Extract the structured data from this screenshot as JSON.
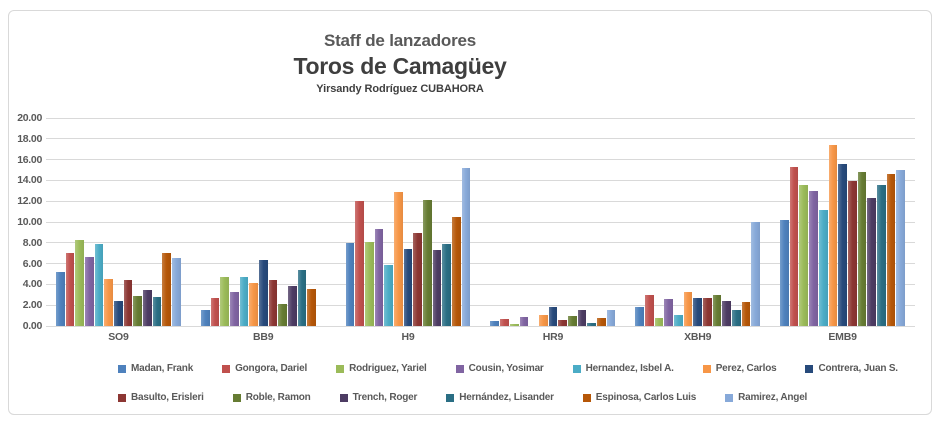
{
  "frame": {
    "background": "#FFFFFF",
    "border_color": "#D9D9D9"
  },
  "chart_data": {
    "type": "bar",
    "title": "Staff de lanzadores",
    "team_title": "Toros de Camagüey",
    "byline": "Yirsandy Rodríguez CUBAHORA",
    "categories": [
      "SO9",
      "BB9",
      "H9",
      "HR9",
      "XBH9",
      "EMB9"
    ],
    "xlabel": "",
    "ylabel": "",
    "ylim": [
      0,
      20
    ],
    "ytick_step": 2,
    "ytick_decimals": 2,
    "grid": true,
    "gridline_color": "#D9D9D9",
    "legend_position": "bottom",
    "legend_row_split": 7,
    "series": [
      {
        "name": "Madan, Frank",
        "color": "#4E81BD",
        "values": [
          5.2,
          1.5,
          8.0,
          0.5,
          1.8,
          10.2
        ]
      },
      {
        "name": "Gongora, Dariel",
        "color": "#C0504D",
        "values": [
          7.0,
          2.7,
          12.0,
          0.7,
          3.0,
          15.3
        ]
      },
      {
        "name": "Rodriguez, Yariel",
        "color": "#9BBB59",
        "values": [
          8.3,
          4.7,
          8.1,
          0.2,
          0.8,
          13.6
        ]
      },
      {
        "name": "Cousin, Yosimar",
        "color": "#8064A2",
        "values": [
          6.6,
          3.3,
          9.3,
          0.9,
          2.6,
          13.0
        ]
      },
      {
        "name": "Hernandez, Isbel A.",
        "color": "#4BACC6",
        "values": [
          7.9,
          4.7,
          5.9,
          0.0,
          1.1,
          11.2
        ]
      },
      {
        "name": "Perez, Carlos",
        "color": "#F79646",
        "values": [
          4.5,
          4.1,
          12.9,
          1.1,
          3.3,
          17.4
        ]
      },
      {
        "name": "Contrera, Juan S.",
        "color": "#274A7B",
        "values": [
          2.4,
          6.3,
          7.4,
          1.8,
          2.7,
          15.6
        ]
      },
      {
        "name": "Basulto, Erisleri",
        "color": "#8C3633",
        "values": [
          4.4,
          4.4,
          8.9,
          0.6,
          2.7,
          13.9
        ]
      },
      {
        "name": "Roble, Ramon",
        "color": "#667C33",
        "values": [
          2.9,
          2.1,
          12.1,
          1.0,
          3.0,
          14.8
        ]
      },
      {
        "name": "Trench, Roger",
        "color": "#4D3C63",
        "values": [
          3.5,
          3.8,
          7.3,
          1.5,
          2.4,
          12.3
        ]
      },
      {
        "name": "Hernández, Lisander",
        "color": "#2A6E84",
        "values": [
          2.8,
          5.4,
          7.9,
          0.3,
          1.5,
          13.6
        ]
      },
      {
        "name": "Espinosa, Carlos Luis",
        "color": "#B65708",
        "values": [
          7.0,
          3.6,
          10.5,
          0.8,
          2.3,
          14.6
        ]
      },
      {
        "name": "Ramirez, Angel",
        "color": "#87A9D9",
        "values": [
          6.5,
          0.0,
          15.2,
          1.5,
          10.0,
          15.0
        ]
      }
    ]
  }
}
